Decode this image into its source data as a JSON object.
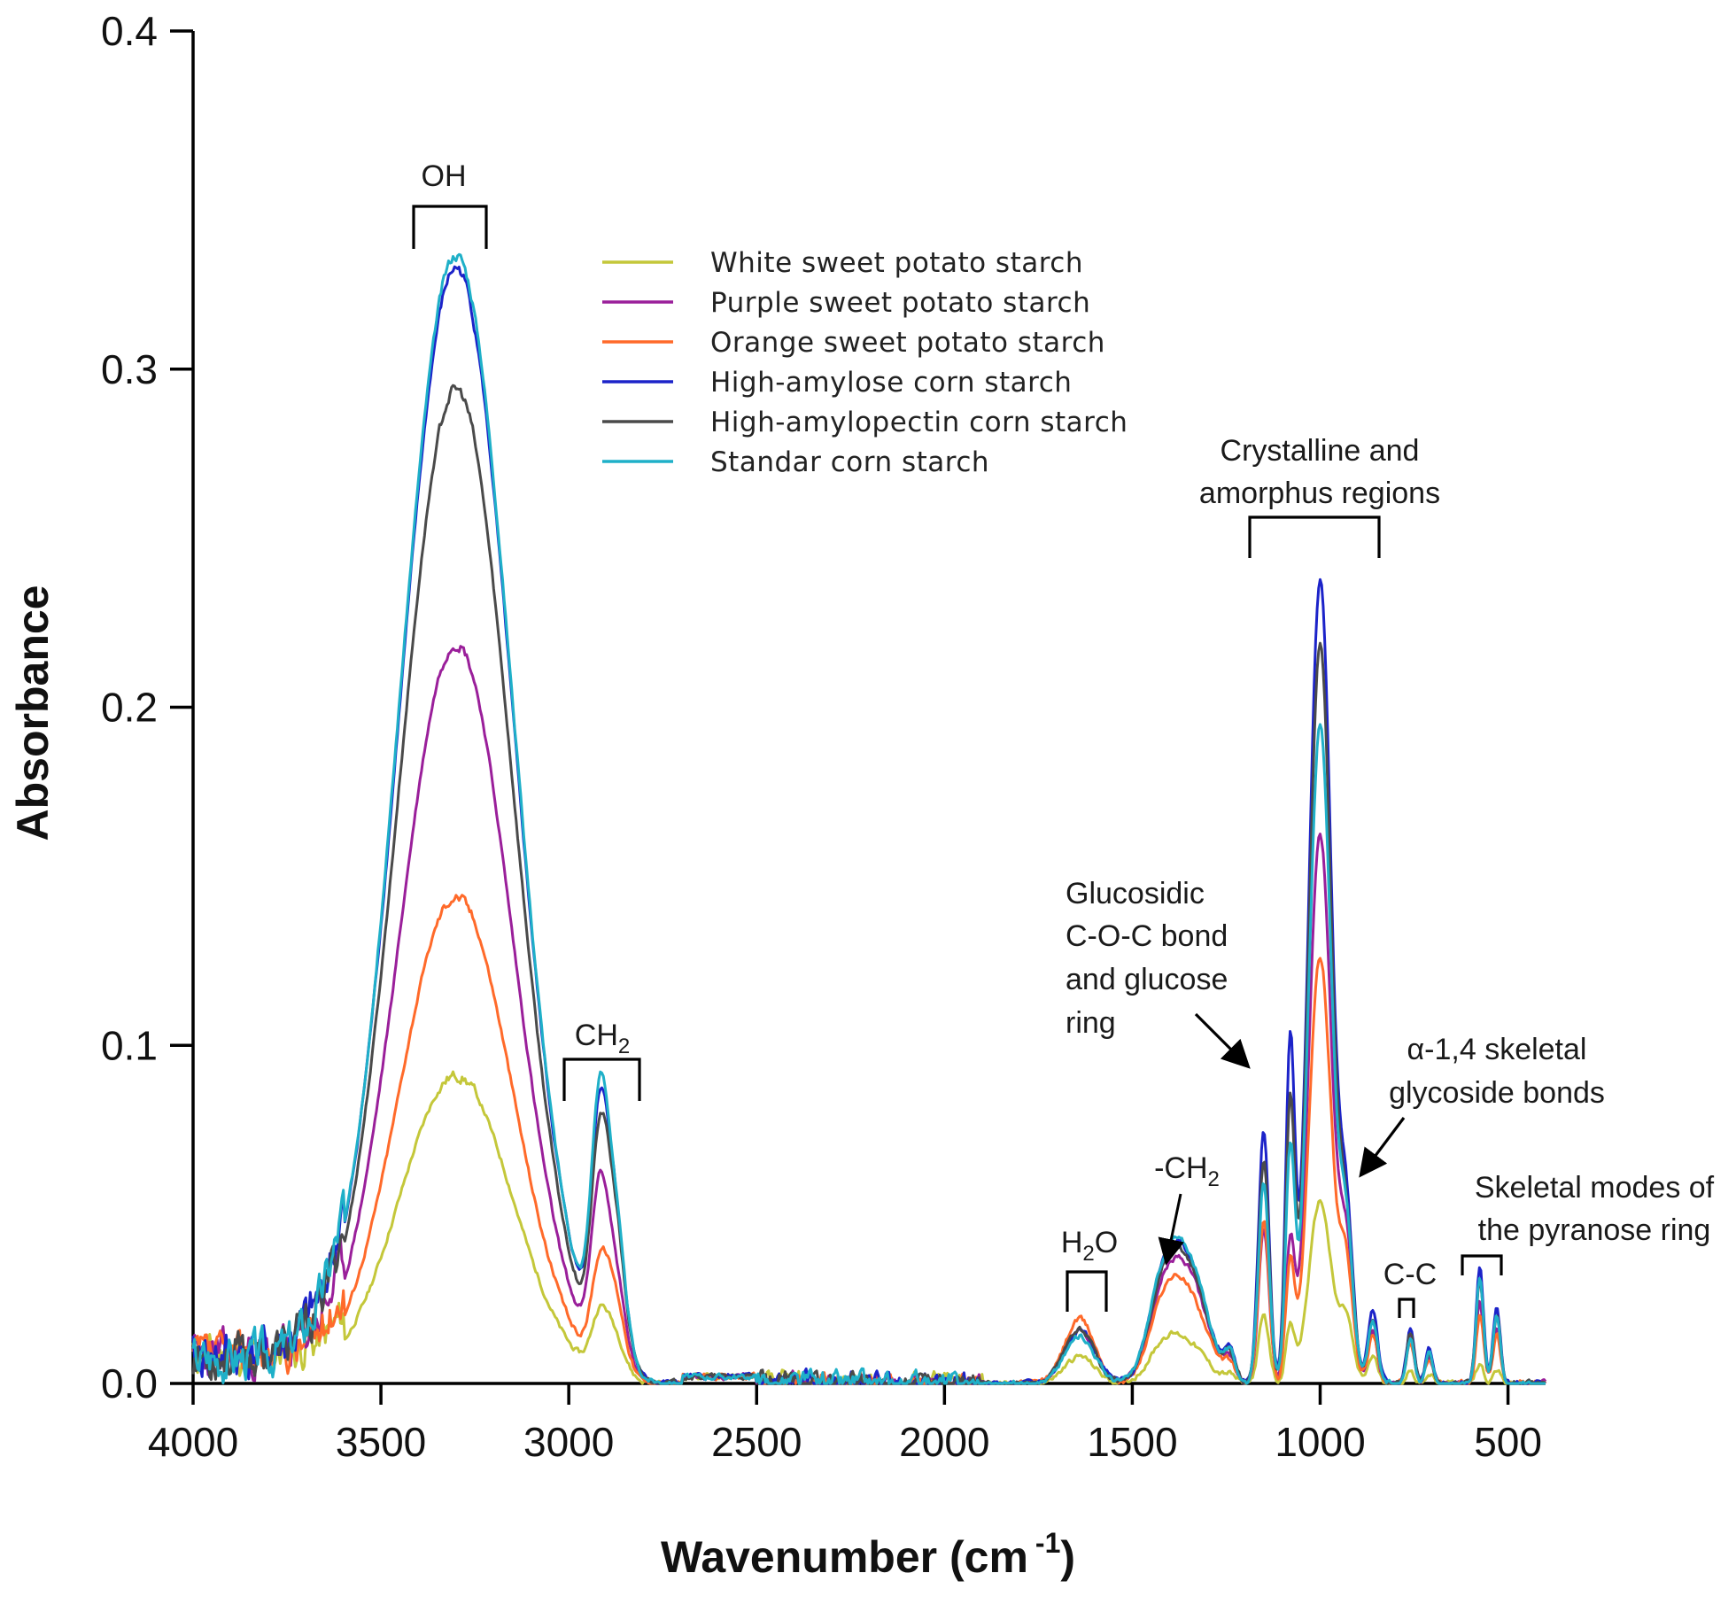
{
  "chart_data": {
    "type": "line",
    "title": "",
    "xlabel": "Wavenumber (cm",
    "xlabel_sup": "-1",
    "xlabel_close": ")",
    "ylabel": "Absorbance",
    "xlim": [
      4000,
      400
    ],
    "ylim": [
      0,
      0.4
    ],
    "x_ticks": [
      4000,
      3500,
      3000,
      2500,
      2000,
      1500,
      1000,
      500
    ],
    "x_tick_labels": [
      "4000",
      "3500",
      "3000",
      "2500",
      "2000",
      "1500",
      "1000",
      "500"
    ],
    "y_ticks": [
      0,
      0.1,
      0.2,
      0.3,
      0.4
    ],
    "y_tick_labels": [
      "0.0",
      "0.1",
      "0.2",
      "0.3",
      "0.4"
    ],
    "grid": false,
    "legend_position": "top-center",
    "peak_model": {
      "centers": [
        3300,
        2920,
        2880,
        1640,
        1420,
        1350,
        1240,
        1150,
        1080,
        1000,
        930,
        860,
        760,
        710,
        575,
        530
      ],
      "widths": [
        150,
        22,
        28,
        40,
        40,
        50,
        15,
        14,
        12,
        30,
        18,
        13,
        10,
        10,
        10,
        10
      ],
      "noise_band": [
        3600,
        4000
      ],
      "noise_band2": [
        1900,
        2500
      ]
    },
    "series": [
      {
        "name": "White sweet potato starch",
        "color": "#c4c73a",
        "amplitudes": [
          0.091,
          0.014,
          0.013,
          0.008,
          0.009,
          0.011,
          0.002,
          0.02,
          0.016,
          0.054,
          0.018,
          0.008,
          0.004,
          0.003,
          0.006,
          0.004
        ],
        "noise": 0.011,
        "seed": 11
      },
      {
        "name": "Purple sweet potato starch",
        "color": "#9a1f9a",
        "amplitudes": [
          0.219,
          0.042,
          0.03,
          0.016,
          0.02,
          0.03,
          0.006,
          0.046,
          0.04,
          0.162,
          0.038,
          0.015,
          0.014,
          0.008,
          0.024,
          0.016
        ],
        "noise": 0.012,
        "seed": 23
      },
      {
        "name": "Orange sweet potato starch",
        "color": "#ff6a2a",
        "amplitudes": [
          0.144,
          0.024,
          0.024,
          0.019,
          0.018,
          0.025,
          0.005,
          0.048,
          0.034,
          0.126,
          0.032,
          0.014,
          0.012,
          0.007,
          0.02,
          0.014
        ],
        "noise": 0.011,
        "seed": 37
      },
      {
        "name": "High-amylose corn starch",
        "color": "#1c23c9",
        "amplitudes": [
          0.33,
          0.056,
          0.046,
          0.016,
          0.024,
          0.033,
          0.008,
          0.075,
          0.098,
          0.238,
          0.046,
          0.022,
          0.016,
          0.01,
          0.034,
          0.022
        ],
        "noise": 0.014,
        "seed": 41
      },
      {
        "name": "High-amylopectin corn starch",
        "color": "#4a4a4a",
        "amplitudes": [
          0.294,
          0.05,
          0.044,
          0.016,
          0.022,
          0.032,
          0.007,
          0.066,
          0.08,
          0.219,
          0.042,
          0.019,
          0.015,
          0.009,
          0.03,
          0.02
        ],
        "noise": 0.012,
        "seed": 53
      },
      {
        "name": "Standar corn starch",
        "color": "#1fb0c8",
        "amplitudes": [
          0.334,
          0.06,
          0.046,
          0.014,
          0.024,
          0.034,
          0.007,
          0.06,
          0.066,
          0.195,
          0.042,
          0.018,
          0.014,
          0.009,
          0.032,
          0.02
        ],
        "noise": 0.012,
        "seed": 67
      }
    ],
    "annotations": [
      {
        "key": "oh",
        "lines": [
          "OH"
        ],
        "range": [
          3420,
          3220
        ]
      },
      {
        "key": "ch2",
        "lines": [
          "CH",
          "2"
        ],
        "range": [
          3010,
          2800
        ]
      },
      {
        "key": "h2o",
        "lines": [
          "H",
          "2",
          "O"
        ],
        "range": [
          1690,
          1580
        ]
      },
      {
        "key": "ch2b",
        "lines": [
          "-CH",
          "2"
        ],
        "arrow_to": 1420
      },
      {
        "key": "gluco",
        "lines": [
          "Glucosidic",
          "C-O-C bond",
          "and glucose",
          "ring"
        ],
        "arrow_to": 1170
      },
      {
        "key": "cryst",
        "lines": [
          "Crystalline and",
          "amorphus regions"
        ],
        "range": [
          1190,
          850
        ]
      },
      {
        "key": "alpha",
        "lines": [
          "α-1,4 skeletal",
          "glycoside bonds"
        ],
        "arrow_to": 930
      },
      {
        "key": "cc",
        "lines": [
          "C-C"
        ],
        "range": [
          790,
          750
        ]
      },
      {
        "key": "skel",
        "lines": [
          "Skeletal modes of",
          "the pyranose ring"
        ],
        "range": [
          620,
          510
        ]
      }
    ]
  }
}
